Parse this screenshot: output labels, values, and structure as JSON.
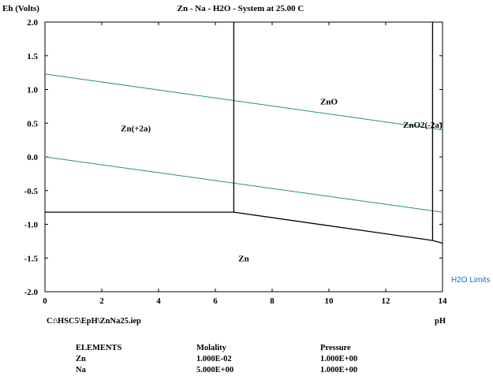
{
  "chart_data": {
    "type": "line",
    "title": "Zn - Na - H2O - System at 25.00 C",
    "ylabel": "Eh (Volts)",
    "xlabel": "pH",
    "xlim": [
      0,
      14
    ],
    "ylim": [
      -2.0,
      2.0
    ],
    "x_ticks": [
      "0",
      "2",
      "4",
      "6",
      "8",
      "10",
      "12",
      "14"
    ],
    "y_ticks": [
      "2.0",
      "1.5",
      "1.0",
      "0.5",
      "0.0",
      "-0.5",
      "-1.0",
      "-1.5",
      "-2.0"
    ],
    "grid": false,
    "water_limits": {
      "label": "H2O Limits",
      "color": "#2a8c8c",
      "upper": [
        [
          0,
          1.23
        ],
        [
          14,
          0.4
        ]
      ],
      "lower": [
        [
          0,
          0.0
        ],
        [
          14,
          -0.82
        ]
      ]
    },
    "boundaries": [
      {
        "points": [
          [
            6.65,
            2.0
          ],
          [
            6.65,
            -0.82
          ]
        ]
      },
      {
        "points": [
          [
            0,
            -0.82
          ],
          [
            6.65,
            -0.82
          ]
        ]
      },
      {
        "points": [
          [
            6.65,
            -0.82
          ],
          [
            13.65,
            -1.24
          ]
        ]
      },
      {
        "points": [
          [
            13.65,
            2.0
          ],
          [
            13.65,
            -1.24
          ]
        ]
      },
      {
        "points": [
          [
            13.65,
            -1.24
          ],
          [
            14,
            -1.28
          ]
        ]
      }
    ],
    "regions": [
      {
        "label": "Zn(+2a)",
        "x": 3.2,
        "y": 0.38
      },
      {
        "label": "ZnO",
        "x": 10.0,
        "y": 0.78
      },
      {
        "label": "ZnO2(-2a)",
        "x": 13.3,
        "y": 0.43
      },
      {
        "label": "Zn",
        "x": 7.0,
        "y": -1.55
      }
    ]
  },
  "footer": {
    "file_path": "C:\\HSC5\\EpH\\ZnNa25.iep",
    "elements_header": "ELEMENTS",
    "molality_header": "Molality",
    "pressure_header": "Pressure",
    "rows": [
      {
        "element": "Zn",
        "molality": "1.000E-02",
        "pressure": "1.000E+00"
      },
      {
        "element": "Na",
        "molality": "5.000E+00",
        "pressure": "1.000E+00"
      }
    ]
  }
}
